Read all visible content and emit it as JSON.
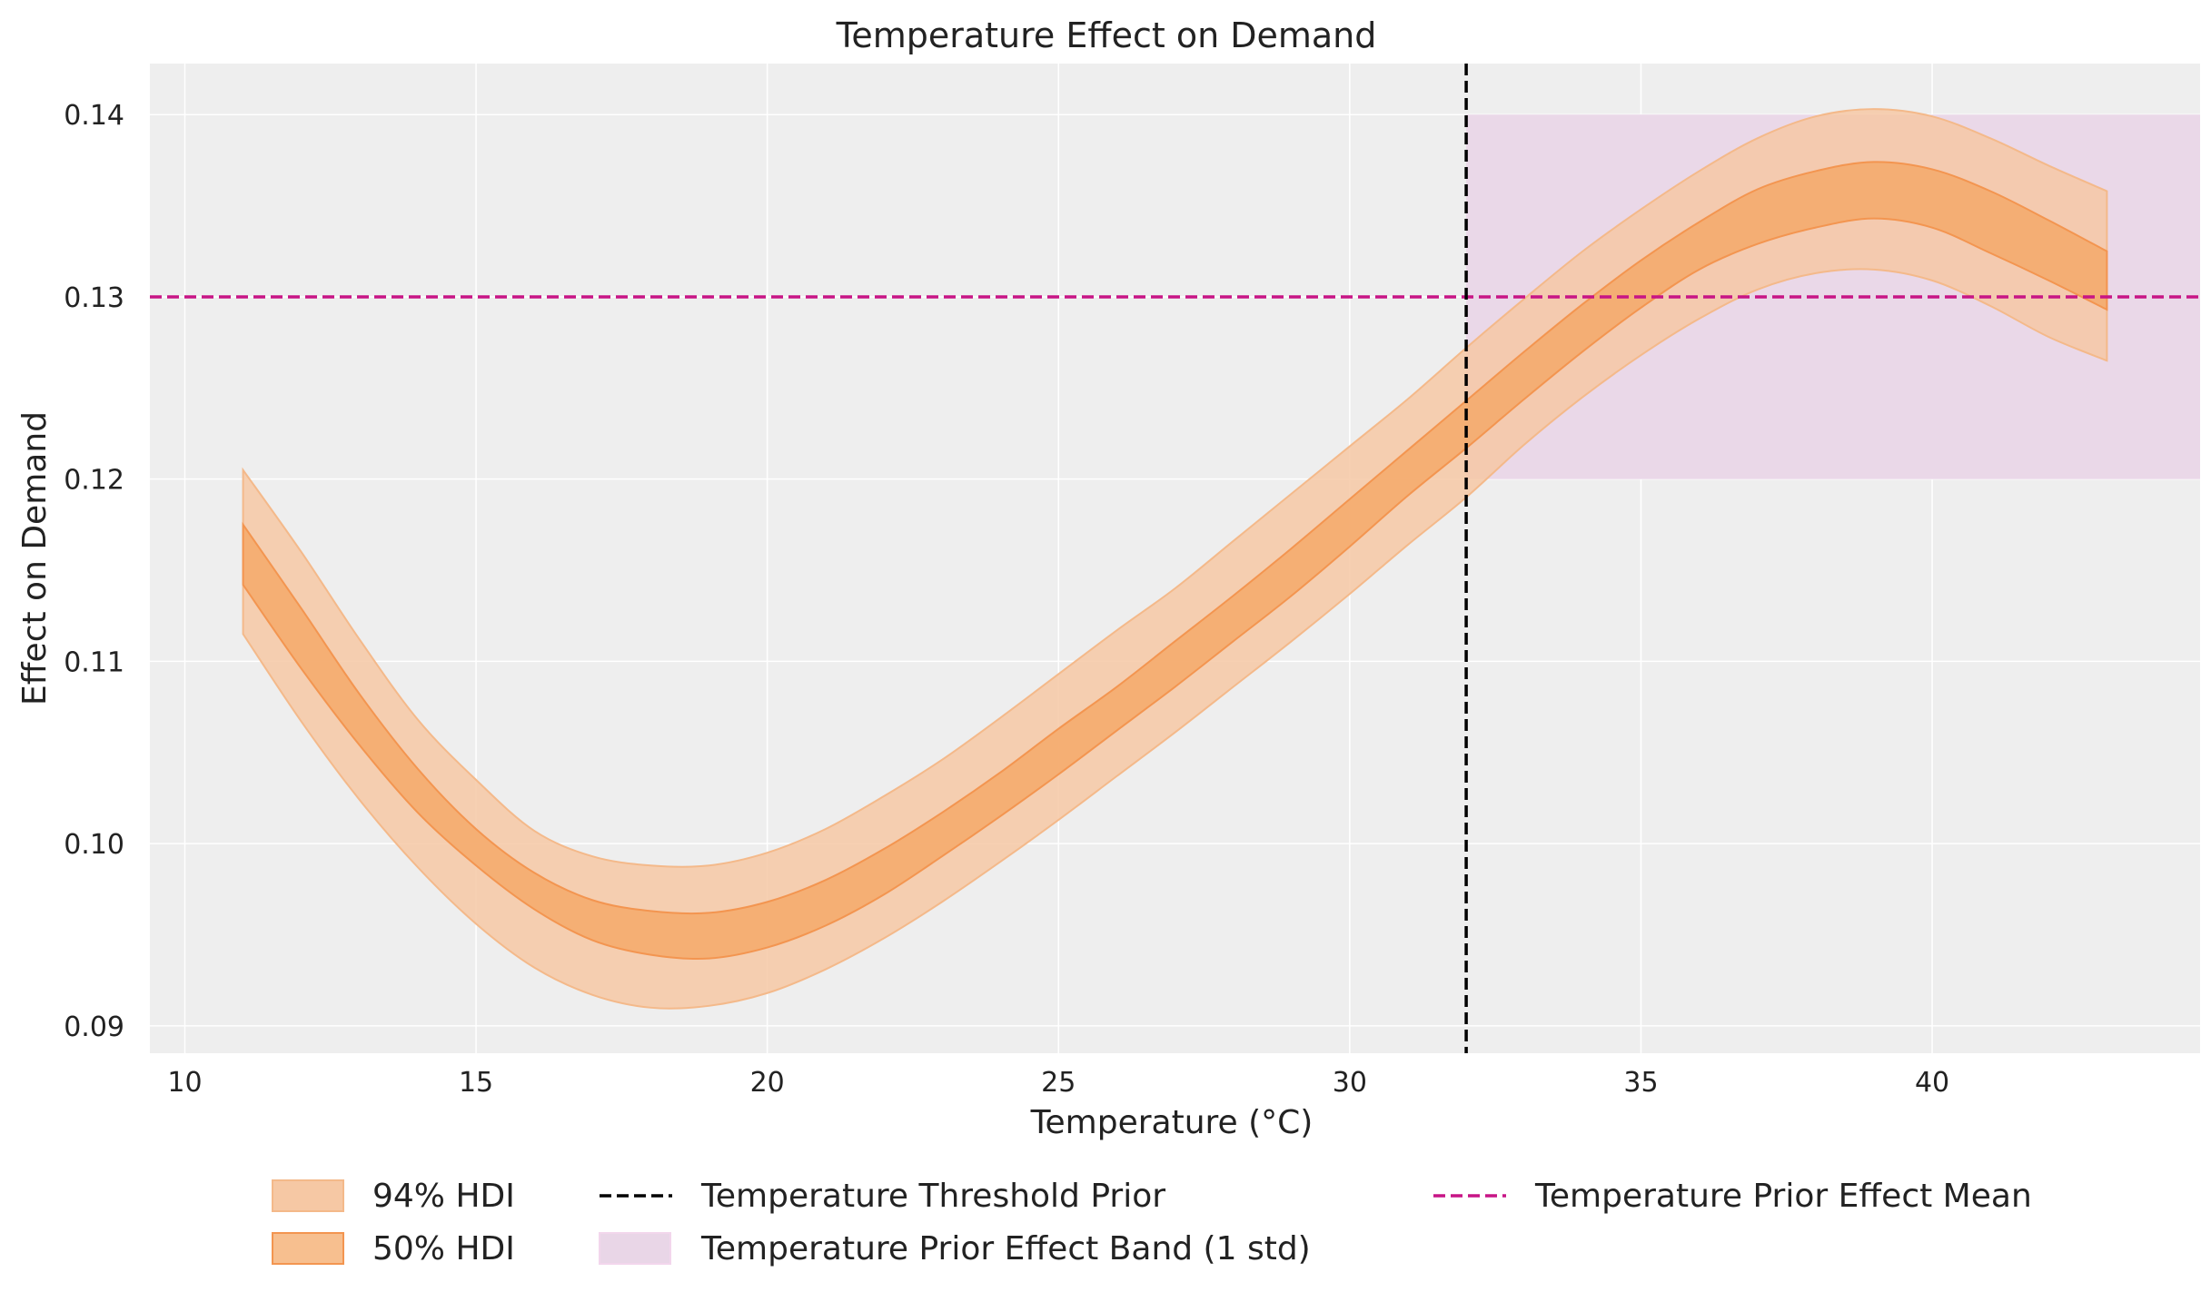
{
  "chart_data": {
    "type": "area",
    "title": "Temperature Effect on Demand",
    "xlabel": "Temperature (°C)",
    "ylabel": "Effect on Demand",
    "xlim": [
      9.4,
      44.6
    ],
    "ylim": [
      0.0885,
      0.1428
    ],
    "xticks": [
      10,
      15,
      20,
      25,
      30,
      35,
      40
    ],
    "yticks": [
      0.09,
      0.1,
      0.11,
      0.12,
      0.13,
      0.14
    ],
    "xtick_labels": [
      "10",
      "15",
      "20",
      "25",
      "30",
      "35",
      "40"
    ],
    "ytick_labels": [
      "0.09",
      "0.10",
      "0.11",
      "0.12",
      "0.13",
      "0.14"
    ],
    "grid": true,
    "series": [
      {
        "name": "94% HDI",
        "x": [
          11,
          12,
          13,
          14,
          15,
          16,
          17,
          18,
          19,
          20,
          21,
          22,
          23,
          24,
          25,
          26,
          27,
          28,
          29,
          30,
          31,
          32,
          33,
          34,
          35,
          36,
          37,
          38,
          39,
          40,
          41,
          42,
          43
        ],
        "lower": [
          0.1115,
          0.1067,
          0.1024,
          0.0987,
          0.0956,
          0.0932,
          0.0917,
          0.091,
          0.0911,
          0.0918,
          0.0931,
          0.0948,
          0.0968,
          0.099,
          0.1013,
          0.1037,
          0.1061,
          0.1086,
          0.1111,
          0.1137,
          0.1164,
          0.119,
          0.1219,
          0.1245,
          0.1268,
          0.1288,
          0.1304,
          0.1313,
          0.1315,
          0.1309,
          0.1295,
          0.1278,
          0.1265
        ],
        "upper": [
          0.1205,
          0.116,
          0.1112,
          0.1068,
          0.1035,
          0.1007,
          0.0993,
          0.0988,
          0.0988,
          0.0995,
          0.1008,
          0.1026,
          0.1046,
          0.1069,
          0.1093,
          0.1117,
          0.114,
          0.1166,
          0.1192,
          0.1218,
          0.1244,
          0.1272,
          0.1299,
          0.1325,
          0.1348,
          0.1369,
          0.1387,
          0.1399,
          0.1403,
          0.1399,
          0.1387,
          0.1372,
          0.1358
        ]
      },
      {
        "name": "50% HDI",
        "x": [
          11,
          12,
          13,
          14,
          15,
          16,
          17,
          18,
          19,
          20,
          21,
          22,
          23,
          24,
          25,
          26,
          27,
          28,
          29,
          30,
          31,
          32,
          33,
          34,
          35,
          36,
          37,
          38,
          39,
          40,
          41,
          42,
          43
        ],
        "lower": [
          0.1142,
          0.1096,
          0.1054,
          0.1017,
          0.0988,
          0.0964,
          0.0947,
          0.0939,
          0.0937,
          0.0943,
          0.0955,
          0.0972,
          0.0993,
          0.1015,
          0.1038,
          0.1062,
          0.1086,
          0.1111,
          0.1136,
          0.1163,
          0.1191,
          0.1217,
          0.1244,
          0.127,
          0.1294,
          0.1315,
          0.1329,
          0.1338,
          0.1343,
          0.1338,
          0.1324,
          0.1309,
          0.1293
        ],
        "upper": [
          0.1175,
          0.1129,
          0.1082,
          0.1041,
          0.1008,
          0.0984,
          0.0969,
          0.0963,
          0.0962,
          0.0968,
          0.098,
          0.0997,
          0.1017,
          0.1039,
          0.1063,
          0.1086,
          0.1111,
          0.1136,
          0.1162,
          0.1189,
          0.1216,
          0.1243,
          0.127,
          0.1296,
          0.132,
          0.1341,
          0.1359,
          0.1369,
          0.1374,
          0.137,
          0.1358,
          0.1342,
          0.1325
        ]
      }
    ],
    "threshold_prior": {
      "name": "Temperature Threshold Prior",
      "x": 32
    },
    "prior_effect_mean": {
      "name": "Temperature Prior Effect Mean",
      "y": 0.13
    },
    "prior_effect_band": {
      "name": "Temperature Prior Effect Band (1 std)",
      "x_start": 32,
      "y_low": 0.12,
      "y_high": 0.14
    },
    "legend": {
      "position": "bottom-center",
      "entries": [
        "94% HDI",
        "50% HDI",
        "Temperature Threshold Prior",
        "Temperature Prior Effect Band (1 std)",
        "Temperature Prior Effect Mean"
      ]
    },
    "colors": {
      "hdi94": "#f6c8a4",
      "hdi94_edge": "#f4b98a",
      "hdi50": "#f4a460",
      "hdi50_edge": "#f39550",
      "threshold": "#000000",
      "mean_line": "#c71585",
      "band": "#e9d6e7",
      "plot_bg": "#eeeeee",
      "grid": "#ffffff"
    }
  }
}
